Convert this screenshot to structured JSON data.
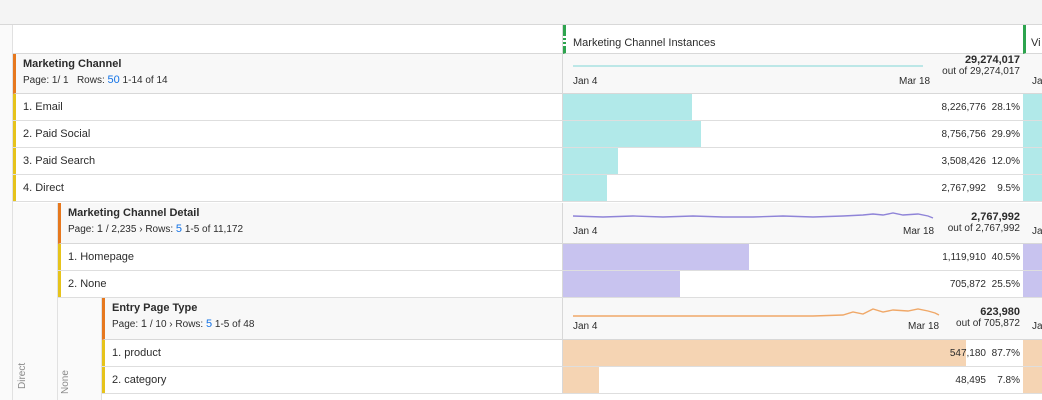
{
  "column": {
    "title": "Marketing Channel Instances",
    "next_title_fragment": "Vi"
  },
  "channel_panel": {
    "title": "Marketing Channel",
    "page_label": "Page: 1/ 1",
    "rows_label": "Rows:",
    "rows_value": "50",
    "range": "1-14 of 14",
    "x_start": "Jan 4",
    "x_end": "Mar 18",
    "total": "29,274,017",
    "total_of": "out of 29,274,017",
    "next_col_fragment": "Ja",
    "rows": [
      {
        "label": "1.  Email",
        "value": "8,226,776",
        "pct": "28.1%",
        "bar": 0.281
      },
      {
        "label": "2.  Paid Social",
        "value": "8,756,756",
        "pct": "29.9%",
        "bar": 0.299
      },
      {
        "label": "3.  Paid Search",
        "value": "3,508,426",
        "pct": "12.0%",
        "bar": 0.12
      },
      {
        "label": "4.  Direct",
        "value": "2,767,992",
        "pct": "9.5%",
        "bar": 0.095
      }
    ],
    "bar_color": "#b1e9e9"
  },
  "detail_panel": {
    "title": "Marketing Channel Detail",
    "page_label": "Page:",
    "page_value": "1",
    "page_total": "/ 2,235",
    "rows_label": "Rows:",
    "rows_value": "5",
    "range": "1-5 of 11,172",
    "x_start": "Jan 4",
    "x_end": "Mar 18",
    "total": "2,767,992",
    "total_of": "out of 2,767,992",
    "next_col_fragment": "Ja",
    "rows": [
      {
        "label": "1.  Homepage",
        "value": "1,119,910",
        "pct": "40.5%",
        "bar": 0.405
      },
      {
        "label": "2.  None",
        "value": "705,872",
        "pct": "25.5%",
        "bar": 0.255
      }
    ],
    "bar_color": "#c8c3ef",
    "line_color": "#8f84d8"
  },
  "entry_panel": {
    "title": "Entry Page Type",
    "page_label": "Page:",
    "page_value": "1",
    "page_total": "/ 10",
    "rows_label": "Rows:",
    "rows_value": "5",
    "range": "1-5 of 48",
    "x_start": "Jan 4",
    "x_end": "Mar 18",
    "total": "623,980",
    "total_of": "out of 705,872",
    "next_col_fragment": "Ja",
    "rows": [
      {
        "label": "1.  product",
        "value": "547,180",
        "pct": "87.7%",
        "bar": 0.877
      },
      {
        "label": "2.  category",
        "value": "48,495",
        "pct": "7.8%",
        "bar": 0.078
      }
    ],
    "bar_color": "#f5d4b3",
    "line_color": "#f0a868"
  },
  "breakdown_labels": {
    "level1": "Direct",
    "level2": "None"
  }
}
